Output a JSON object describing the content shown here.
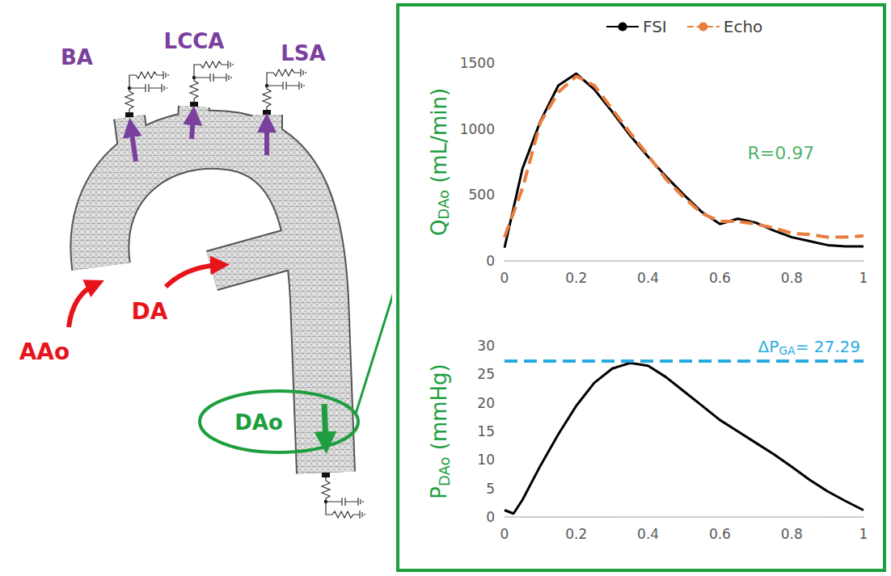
{
  "diagram": {
    "branches": [
      "BA",
      "LCCA",
      "LSA"
    ],
    "inlets": [
      "AAo",
      "DA"
    ],
    "outlet": "DAo"
  },
  "chart_data": [
    {
      "type": "line",
      "ylabel": [
        {
          "text": "Q"
        },
        {
          "text": "DAo",
          "sub": true
        },
        {
          "text": " (mL/min)"
        }
      ],
      "x": [
        0,
        0.05,
        0.1,
        0.15,
        0.2,
        0.25,
        0.3,
        0.35,
        0.4,
        0.45,
        0.5,
        0.55,
        0.6,
        0.65,
        0.7,
        0.75,
        0.8,
        0.85,
        0.9,
        0.95,
        1
      ],
      "series": [
        {
          "name": "FSI",
          "color": "#000000",
          "line_style": "solid",
          "values": [
            100,
            700,
            1060,
            1330,
            1420,
            1300,
            1130,
            950,
            790,
            640,
            500,
            370,
            280,
            320,
            290,
            230,
            180,
            150,
            120,
            110,
            110
          ]
        },
        {
          "name": "Echo",
          "color": "#e87d3e",
          "line_style": "dashed",
          "values": [
            180,
            550,
            1050,
            1280,
            1400,
            1330,
            1150,
            970,
            800,
            620,
            480,
            360,
            300,
            300,
            280,
            250,
            210,
            200,
            180,
            180,
            190
          ]
        }
      ],
      "xlim": [
        0,
        1
      ],
      "xticks": [
        0,
        0.2,
        0.4,
        0.6,
        0.8,
        1
      ],
      "ylim": [
        0,
        1500
      ],
      "yticks": [
        0,
        500,
        1000,
        1500
      ],
      "grid": false,
      "legend": "top",
      "annotations": [
        {
          "text": "R=0.97",
          "x": 0.77,
          "y": 820
        }
      ]
    },
    {
      "type": "line",
      "ylabel": [
        {
          "text": "P"
        },
        {
          "text": "DAo",
          "sub": true
        },
        {
          "text": " (mmHg)"
        }
      ],
      "x": [
        0,
        0.025,
        0.05,
        0.1,
        0.15,
        0.2,
        0.25,
        0.3,
        0.35,
        0.4,
        0.45,
        0.5,
        0.55,
        0.6,
        0.65,
        0.7,
        0.75,
        0.8,
        0.85,
        0.9,
        0.95,
        1
      ],
      "series": [
        {
          "name": "P",
          "color": "#000000",
          "line_style": "solid",
          "values": [
            1.2,
            0.6,
            3,
            9,
            14.5,
            19.5,
            23.5,
            26,
            27,
            26.5,
            24.5,
            22,
            19.5,
            17,
            15,
            13,
            11,
            8.8,
            6.5,
            4.5,
            2.8,
            1.2
          ]
        }
      ],
      "xlim": [
        0,
        1
      ],
      "xticks": [
        0,
        0.2,
        0.4,
        0.6,
        0.8,
        1
      ],
      "ylim": [
        0,
        30
      ],
      "yticks": [
        0,
        5,
        10,
        15,
        20,
        25,
        30
      ],
      "grid": false,
      "reference_line": {
        "value": 27.29,
        "color": "#29abe2",
        "label": [
          {
            "text": "ΔP"
          },
          {
            "text": "GA",
            "sub": true
          },
          {
            "text": "= 27.29"
          }
        ]
      }
    }
  ]
}
